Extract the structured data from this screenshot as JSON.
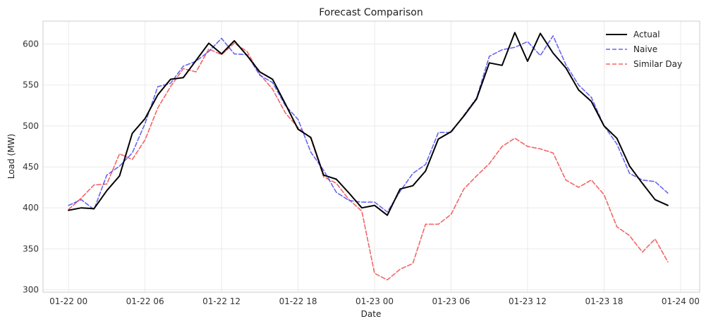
{
  "chart_data": {
    "type": "line",
    "title": "Forecast Comparison",
    "xlabel": "Date",
    "ylabel": "Load (MW)",
    "x_start": "2024-01-22T00:00",
    "x_step_hours": 1,
    "x_ticks": [
      "01-22 00",
      "01-22 06",
      "01-22 12",
      "01-22 18",
      "01-23 00",
      "01-23 06",
      "01-23 12",
      "01-23 18",
      "01-24 00"
    ],
    "y_ticks": [
      300,
      350,
      400,
      450,
      500,
      550,
      600
    ],
    "xlim_hours": [
      -2.0,
      49.5
    ],
    "ylim": [
      297,
      628
    ],
    "grid": true,
    "legend_position": "top-right",
    "series": [
      {
        "name": "Actual",
        "color": "#000000",
        "dash": "solid",
        "values": [
          397,
          400,
          399,
          421,
          439,
          491,
          509,
          538,
          557,
          559,
          580,
          601,
          588,
          604,
          586,
          566,
          557,
          527,
          496,
          486,
          440,
          435,
          418,
          400,
          403,
          391,
          423,
          427,
          445,
          484,
          493,
          512,
          533,
          577,
          574,
          614,
          579,
          613,
          589,
          571,
          544,
          530,
          500,
          485,
          451,
          430,
          410,
          403
        ]
      },
      {
        "name": "Naive",
        "color": "#3333ee",
        "dash": "dashed",
        "values": [
          403,
          410,
          398,
          440,
          451,
          467,
          503,
          548,
          552,
          573,
          579,
          591,
          607,
          588,
          587,
          562,
          553,
          525,
          508,
          468,
          446,
          419,
          409,
          407,
          407,
          395,
          420,
          442,
          453,
          492,
          492,
          513,
          534,
          585,
          593,
          596,
          603,
          586,
          610,
          575,
          550,
          535,
          500,
          478,
          442,
          434,
          432,
          418
        ]
      },
      {
        "name": "Similar Day",
        "color": "#ee3333",
        "dash": "dashed",
        "values": [
          398,
          412,
          428,
          429,
          466,
          459,
          483,
          522,
          548,
          570,
          566,
          594,
          587,
          601,
          591,
          563,
          545,
          516,
          498,
          485,
          438,
          430,
          410,
          396,
          320,
          312,
          325,
          332,
          380,
          380,
          392,
          423,
          439,
          454,
          475,
          485,
          475,
          472,
          467,
          434,
          425,
          434,
          416,
          377,
          366,
          346,
          362,
          334
        ]
      }
    ]
  }
}
